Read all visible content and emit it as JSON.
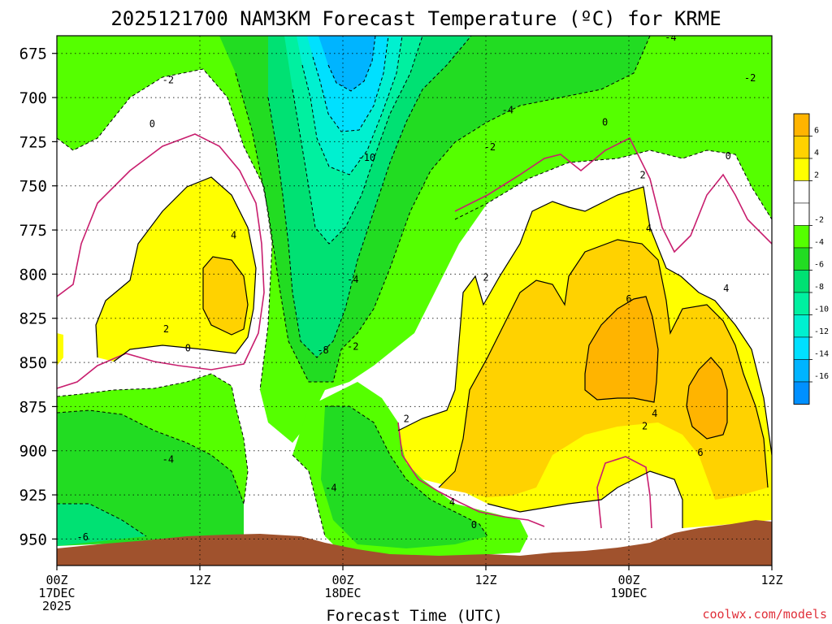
{
  "chart_data": {
    "type": "heatmap",
    "title": "2025121700 NAM3KM Forecast Temperature (ºC) for KRME",
    "xlabel": "Forecast Time (UTC)",
    "ylabel": "",
    "credit": "coolwx.com/models",
    "x_range_hours": [
      0,
      36
    ],
    "y_range_hpa": [
      665,
      965
    ],
    "y_ticks": [
      {
        "value": 675,
        "label": "675"
      },
      {
        "value": 700,
        "label": "700"
      },
      {
        "value": 725,
        "label": "725"
      },
      {
        "value": 750,
        "label": "750"
      },
      {
        "value": 775,
        "label": "775"
      },
      {
        "value": 800,
        "label": "800"
      },
      {
        "value": 825,
        "label": "825"
      },
      {
        "value": 850,
        "label": "850"
      },
      {
        "value": 875,
        "label": "875"
      },
      {
        "value": 900,
        "label": "900"
      },
      {
        "value": 925,
        "label": "925"
      },
      {
        "value": 950,
        "label": "950"
      }
    ],
    "x_ticks": [
      {
        "hour": 0,
        "lines": [
          "00Z",
          "17DEC",
          "2025"
        ]
      },
      {
        "hour": 7.2,
        "lines": [
          "12Z"
        ]
      },
      {
        "hour": 14.4,
        "lines": [
          "00Z",
          "18DEC"
        ]
      },
      {
        "hour": 21.6,
        "lines": [
          "12Z"
        ]
      },
      {
        "hour": 28.8,
        "lines": [
          "00Z",
          "19DEC"
        ]
      },
      {
        "hour": 36,
        "lines": [
          "12Z"
        ]
      }
    ],
    "colorbar": {
      "bands": [
        {
          "lo": 6,
          "hi": 8,
          "color": "#ffb400"
        },
        {
          "lo": 4,
          "hi": 6,
          "color": "#ffd200"
        },
        {
          "lo": 2,
          "hi": 4,
          "color": "#ffff00"
        },
        {
          "lo": 0,
          "hi": 2,
          "color": "#ffffff"
        },
        {
          "lo": -2,
          "hi": 0,
          "color": "#ffffff"
        },
        {
          "lo": -4,
          "hi": -2,
          "color": "#55ff00"
        },
        {
          "lo": -6,
          "hi": -4,
          "color": "#22dc22"
        },
        {
          "lo": -8,
          "hi": -6,
          "color": "#00e173"
        },
        {
          "lo": -10,
          "hi": -8,
          "color": "#00f0a0"
        },
        {
          "lo": -12,
          "hi": -10,
          "color": "#00f0d0"
        },
        {
          "lo": -14,
          "hi": -12,
          "color": "#00e0ff"
        },
        {
          "lo": -16,
          "hi": -14,
          "color": "#00b4ff"
        },
        {
          "lo": -18,
          "hi": -16,
          "color": "#0090ff"
        }
      ],
      "tick_labels": [
        "6",
        "4",
        "2",
        "-2",
        "-4",
        "-6",
        "-8",
        "-10",
        "-12",
        "-14",
        "-16"
      ]
    },
    "terrain_color": "#a0522d",
    "zero_contour_color": "#c81e6e",
    "contour_labels": [
      {
        "text": "-2",
        "hour": 5.6,
        "p": 690
      },
      {
        "text": "0",
        "hour": 4.8,
        "p": 715
      },
      {
        "text": "-10",
        "hour": 15.6,
        "p": 734
      },
      {
        "text": "-4",
        "hour": 22.7,
        "p": 707
      },
      {
        "text": "-2",
        "hour": 21.8,
        "p": 728
      },
      {
        "text": "0",
        "hour": 27.6,
        "p": 714
      },
      {
        "text": "2",
        "hour": 29.5,
        "p": 744
      },
      {
        "text": "0",
        "hour": 33.8,
        "p": 733
      },
      {
        "text": "-2",
        "hour": 34.9,
        "p": 689
      },
      {
        "text": "-4",
        "hour": 30.9,
        "p": 666
      },
      {
        "text": "4",
        "hour": 8.9,
        "p": 778
      },
      {
        "text": "2",
        "hour": 5.5,
        "p": 831
      },
      {
        "text": "0",
        "hour": 6.6,
        "p": 842
      },
      {
        "text": "-4",
        "hour": 14.9,
        "p": 803
      },
      {
        "text": "-2",
        "hour": 14.9,
        "p": 841
      },
      {
        "text": "-8",
        "hour": 13.4,
        "p": 843
      },
      {
        "text": "2",
        "hour": 21.6,
        "p": 802
      },
      {
        "text": "4",
        "hour": 29.8,
        "p": 774
      },
      {
        "text": "6",
        "hour": 28.8,
        "p": 814
      },
      {
        "text": "4",
        "hour": 33.7,
        "p": 808
      },
      {
        "text": "2",
        "hour": 17.6,
        "p": 882
      },
      {
        "text": "4",
        "hour": 19.9,
        "p": 929
      },
      {
        "text": "0",
        "hour": 21.0,
        "p": 942
      },
      {
        "text": "4",
        "hour": 30.1,
        "p": 879
      },
      {
        "text": "2",
        "hour": 29.6,
        "p": 886
      },
      {
        "text": "6",
        "hour": 32.4,
        "p": 901
      },
      {
        "text": "-4",
        "hour": 5.6,
        "p": 905
      },
      {
        "text": "-6",
        "hour": 1.3,
        "p": 949
      },
      {
        "text": "-4",
        "hour": 13.8,
        "p": 921
      }
    ]
  }
}
